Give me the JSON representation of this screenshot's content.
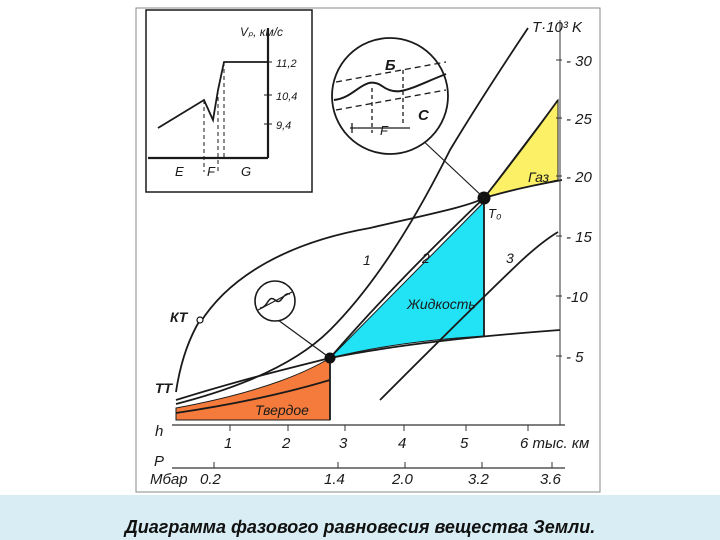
{
  "colors": {
    "solid": "#f47b3c",
    "liquid": "#21e3f5",
    "gas": "#fbf066",
    "curve": "#1a1a1a",
    "caption_bg": "#d8eef4"
  },
  "axis_T": {
    "title": "T·10³ K",
    "ticks": [
      "- 30",
      "- 25",
      "- 20",
      "- 15",
      "-10",
      "- 5"
    ]
  },
  "axis_h": {
    "label": "h",
    "unit_label": "6 тыс. км",
    "ticks": [
      "1",
      "2",
      "3",
      "4",
      "5"
    ]
  },
  "axis_P": {
    "label": "P",
    "unit_label": "Мбар",
    "ticks": [
      "0.2",
      "1.4",
      "2.0",
      "3.2",
      "3.6"
    ]
  },
  "regions": {
    "solid": "Твердое",
    "liquid": "Жидкость",
    "gas": "Газ"
  },
  "curve_labels": [
    "1",
    "2",
    "3"
  ],
  "points": {
    "kt": "КТ",
    "tt": "ТТ",
    "t0": "T₀"
  },
  "inset": {
    "y_label": "Vₚ, км/с",
    "y_ticks": [
      "11,2",
      "10,4",
      "9,4"
    ],
    "x_labels": [
      "E",
      "F",
      "G"
    ]
  },
  "zoom": {
    "label_b": "Б",
    "label_c": "C",
    "label_f": "F"
  },
  "caption": "Диаграмма фазового равновесия вещества Земли."
}
